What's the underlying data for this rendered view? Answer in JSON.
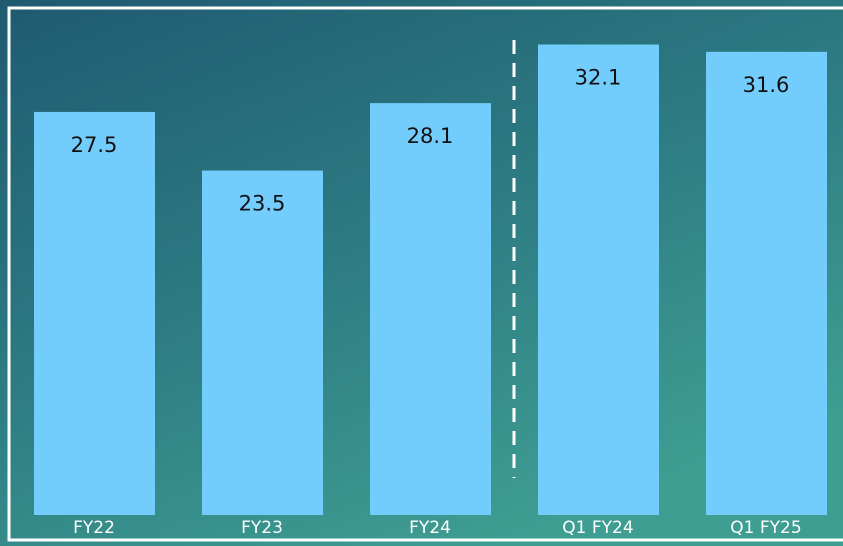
{
  "chart_data": {
    "type": "bar",
    "categories": [
      "FY22",
      "FY23",
      "FY24",
      "Q1 FY24",
      "Q1 FY25"
    ],
    "values": [
      27.5,
      23.5,
      28.1,
      32.1,
      31.6
    ],
    "color": "#73cdfc",
    "ylim": [
      0,
      35
    ]
  }
}
